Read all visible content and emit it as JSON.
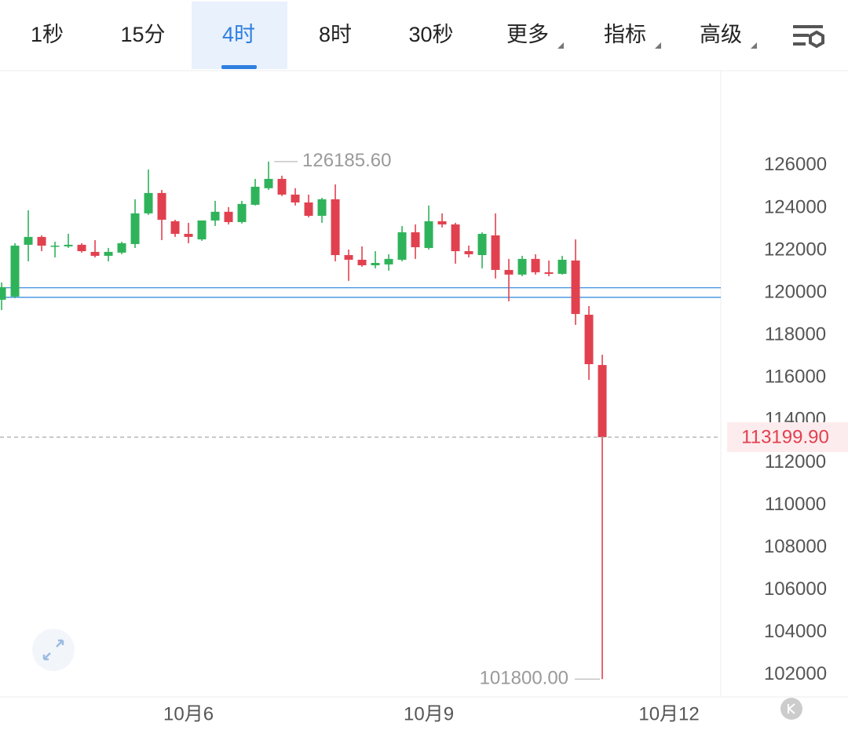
{
  "tabs": [
    {
      "label": "1秒"
    },
    {
      "label": "15分"
    },
    {
      "label": "4时",
      "selected": true
    },
    {
      "label": "8时"
    },
    {
      "label": "30秒"
    },
    {
      "label": "更多",
      "dropdown": true
    },
    {
      "label": "指标",
      "dropdown": true
    },
    {
      "label": "高级",
      "dropdown": true
    }
  ],
  "chart_data": {
    "type": "candlestick",
    "x": [
      0,
      1,
      2,
      3,
      4,
      5,
      6,
      7,
      8,
      9,
      10,
      11,
      12,
      13,
      14,
      15,
      16,
      17,
      18,
      19,
      20,
      21,
      22,
      23,
      24,
      25,
      26,
      27,
      28,
      29,
      30,
      31,
      32,
      33,
      34,
      35,
      36,
      37,
      38,
      39,
      40,
      41,
      42,
      43,
      44,
      45
    ],
    "open": [
      119675,
      119825,
      122265,
      122635,
      122190,
      122190,
      122265,
      121930,
      121745,
      121895,
      122300,
      123745,
      124705,
      123375,
      122780,
      122520,
      123410,
      123820,
      123335,
      124150,
      124930,
      125370,
      124630,
      124260,
      123630,
      124410,
      121780,
      121560,
      121300,
      121340,
      121560,
      122855,
      122115,
      123375,
      123225,
      121965,
      121780,
      122710,
      121080,
      120860,
      121600,
      120970,
      120895,
      121525,
      118970,
      116600
    ],
    "high": [
      120490,
      122340,
      123890,
      122710,
      122410,
      122785,
      122340,
      122485,
      122115,
      122410,
      124410,
      125815,
      124850,
      123445,
      123300,
      123410,
      124335,
      124040,
      124335,
      125370,
      126185.6,
      125520,
      124930,
      124630,
      124480,
      125110,
      122040,
      122190,
      121965,
      121820,
      123150,
      123225,
      124115,
      123745,
      123300,
      122225,
      122855,
      123745,
      121600,
      121745,
      121820,
      121525,
      121745,
      122520,
      119380,
      117085
    ],
    "low": [
      119190,
      119750,
      121485,
      121965,
      121670,
      122115,
      121895,
      121670,
      121485,
      121820,
      122115,
      123670,
      122485,
      122635,
      122340,
      122450,
      123150,
      123225,
      123265,
      124115,
      124850,
      124560,
      124115,
      123560,
      123300,
      121485,
      120565,
      121230,
      121155,
      121045,
      121485,
      121600,
      122040,
      123080,
      121375,
      121670,
      121155,
      120675,
      119600,
      120785,
      120860,
      120785,
      120860,
      118490,
      115900,
      101800
    ],
    "close": [
      120270,
      122225,
      122635,
      122225,
      122225,
      122265,
      121965,
      121745,
      121930,
      122340,
      123745,
      124705,
      123445,
      122780,
      122635,
      123410,
      123820,
      123335,
      124190,
      125000,
      125370,
      124630,
      124260,
      123630,
      124410,
      121780,
      121560,
      121300,
      121410,
      121600,
      122855,
      122150,
      123375,
      123225,
      121965,
      121820,
      122780,
      121080,
      120860,
      121600,
      120970,
      120895,
      121560,
      119005,
      116640,
      113199.9
    ],
    "up_color": "#2fb35a",
    "down_color": "#e1414f",
    "xlim": [
      -0.12,
      53.88
    ],
    "xticks": [
      {
        "value": 14,
        "label": "10月6"
      },
      {
        "value": 32,
        "label": "10月9"
      },
      {
        "value": 50,
        "label": "10月12"
      }
    ],
    "ylim": [
      100960,
      130470
    ],
    "yticks": [
      102000,
      104000,
      106000,
      108000,
      110000,
      112000,
      114000,
      116000,
      118000,
      120000,
      122000,
      124000,
      126000
    ],
    "price_labels": {
      "high": "126185.60",
      "low": "101800.00",
      "last": "113199.90"
    },
    "hlines": [
      120240,
      119790
    ],
    "hline_color": "#3d8fe0"
  }
}
